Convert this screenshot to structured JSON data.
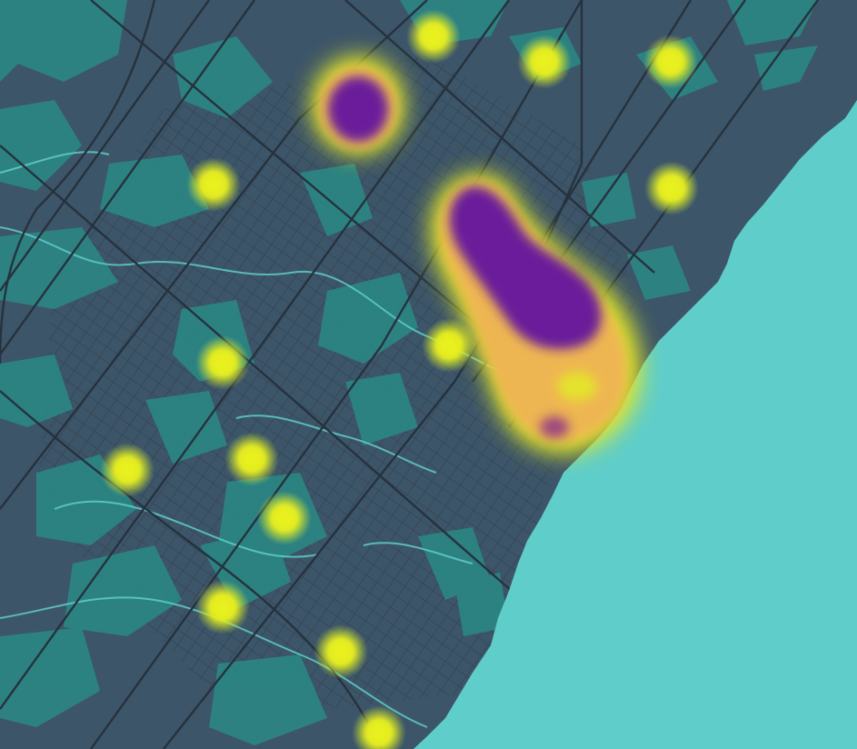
{
  "map": {
    "style": "dark-teal basemap with heatmap overlay",
    "colors": {
      "land": "#3d5568",
      "vegetation": "#2a8a86",
      "water": "#5fcdc9",
      "roads": "#26323e",
      "heat_low": "#e8f01e",
      "heat_mid": "#f0b454",
      "heat_high": "#6a1a9a"
    },
    "labels": []
  },
  "heatmap": {
    "intensity_levels": [
      "low",
      "medium",
      "high"
    ],
    "hotspots": [
      {
        "id": "north-1",
        "level": "low"
      },
      {
        "id": "north-2",
        "level": "low"
      },
      {
        "id": "north-east",
        "level": "low"
      },
      {
        "id": "north-west-cluster",
        "level": "high"
      },
      {
        "id": "west-1",
        "level": "low"
      },
      {
        "id": "east-1",
        "level": "low"
      },
      {
        "id": "central-cluster",
        "level": "high"
      },
      {
        "id": "central-1",
        "level": "low"
      },
      {
        "id": "west-2",
        "level": "low"
      },
      {
        "id": "south-west-1",
        "level": "low"
      },
      {
        "id": "south-west-2",
        "level": "low"
      },
      {
        "id": "south-west-3",
        "level": "low"
      },
      {
        "id": "south-1",
        "level": "low"
      },
      {
        "id": "south-2",
        "level": "low"
      },
      {
        "id": "south-3",
        "level": "low"
      }
    ]
  }
}
